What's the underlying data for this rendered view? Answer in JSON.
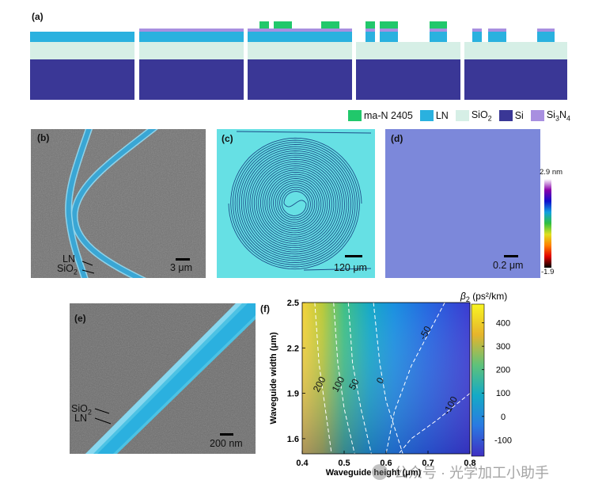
{
  "panel_a": {
    "label": "(a)",
    "legend": [
      {
        "name": "ma-N 2405",
        "color": "#21c86b"
      },
      {
        "name": "LN",
        "color": "#2ab1df"
      },
      {
        "name": "SiO",
        "sub": "2",
        "color": "#d6efe6"
      },
      {
        "name": "Si",
        "color": "#3a3796"
      },
      {
        "name": "Si",
        "sub": "3",
        "tail": "N",
        "sub2": "4",
        "color": "#a88fe0"
      }
    ]
  },
  "panel_b": {
    "label": "(b)",
    "ln_label": "LN",
    "sio2_label": "SiO",
    "sio2_sub": "2",
    "scale": "3 μm"
  },
  "panel_c": {
    "label": "(c)",
    "scale": "120 μm"
  },
  "panel_d": {
    "label": "(d)",
    "scale": "0.2 μm",
    "cbar_max": "2.9 nm",
    "cbar_min": "-1.9"
  },
  "panel_e": {
    "label": "(e)",
    "sio2_label": "SiO",
    "sio2_sub": "2",
    "ln_label": "LN",
    "scale": "200 nm"
  },
  "panel_f": {
    "label": "(f)"
  },
  "chart_data": {
    "type": "heatmap",
    "title": "",
    "xlabel": "Waveguide height (μm)",
    "ylabel": "Waveguide width (μm)",
    "xlim": [
      0.4,
      0.8
    ],
    "ylim": [
      1.5,
      2.5
    ],
    "xticks": [
      "0.4",
      "0.5",
      "0.6",
      "0.7",
      "0.8"
    ],
    "yticks": [
      "1.6",
      "1.9",
      "2.2",
      "2.5"
    ],
    "colorbar": {
      "label": "β",
      "label_sub": "2",
      "unit": " (ps²/km)",
      "range": [
        -170,
        480
      ],
      "ticks": [
        "400",
        "300",
        "200",
        "100",
        "0",
        "-100"
      ]
    },
    "contours": [
      {
        "level": "200",
        "x": [
          0.43,
          0.44,
          0.455,
          0.47
        ],
        "y": [
          2.5,
          2.1,
          1.8,
          1.5
        ]
      },
      {
        "level": "100",
        "x": [
          0.475,
          0.485,
          0.5,
          0.525
        ],
        "y": [
          2.5,
          2.1,
          1.8,
          1.5
        ]
      },
      {
        "level": "50",
        "x": [
          0.51,
          0.52,
          0.54,
          0.565
        ],
        "y": [
          2.5,
          2.1,
          1.8,
          1.5
        ]
      },
      {
        "level": "0",
        "x": [
          0.57,
          0.585,
          0.6,
          0.64
        ],
        "y": [
          2.5,
          2.1,
          1.85,
          1.5
        ]
      },
      {
        "level": "-50",
        "x": [
          0.74,
          0.66,
          0.62,
          0.6
        ],
        "y": [
          2.5,
          2.08,
          1.78,
          1.5
        ]
      },
      {
        "level": "-100",
        "x": [
          0.8,
          0.72,
          0.66,
          0.63
        ],
        "y": [
          1.9,
          1.72,
          1.6,
          1.5
        ]
      }
    ]
  },
  "watermark": {
    "text": "公众号 · 光学加工小助手"
  }
}
